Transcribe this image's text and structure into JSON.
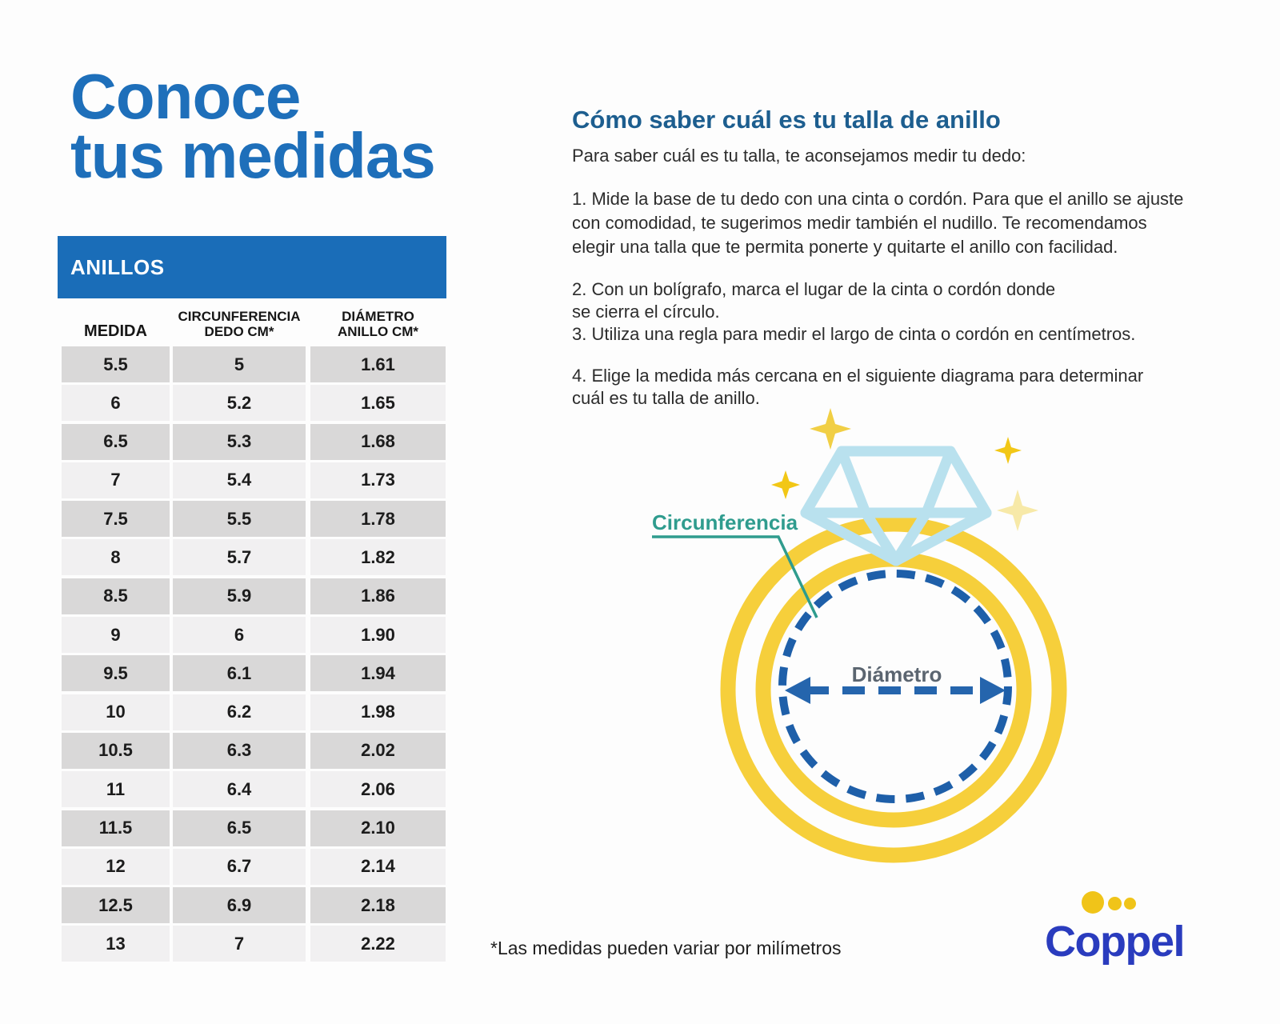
{
  "page": {
    "title": "Conoce\ntus medidas",
    "footnote": "*Las medidas pueden variar por milímetros"
  },
  "table": {
    "header": "ANILLOS",
    "columns": [
      "MEDIDA",
      "CIRCUNFERENCIA\nDEDO CM*",
      "DIÁMETRO\nANILLO CM*"
    ],
    "rows": [
      [
        "5.5",
        "5",
        "1.61"
      ],
      [
        "6",
        "5.2",
        "1.65"
      ],
      [
        "6.5",
        "5.3",
        "1.68"
      ],
      [
        "7",
        "5.4",
        "1.73"
      ],
      [
        "7.5",
        "5.5",
        "1.78"
      ],
      [
        "8",
        "5.7",
        "1.82"
      ],
      [
        "8.5",
        "5.9",
        "1.86"
      ],
      [
        "9",
        "6",
        "1.90"
      ],
      [
        "9.5",
        "6.1",
        "1.94"
      ],
      [
        "10",
        "6.2",
        "1.98"
      ],
      [
        "10.5",
        "6.3",
        "2.02"
      ],
      [
        "11",
        "6.4",
        "2.06"
      ],
      [
        "11.5",
        "6.5",
        "2.10"
      ],
      [
        "12",
        "6.7",
        "2.14"
      ],
      [
        "12.5",
        "6.9",
        "2.18"
      ],
      [
        "13",
        "7",
        "2.22"
      ]
    ]
  },
  "instructions": {
    "heading": "Cómo saber cuál es tu talla de anillo",
    "intro": "Para saber cuál es tu talla, te aconsejamos medir tu dedo:",
    "step1": "1. Mide la base de tu dedo con una cinta o cordón. Para que el anillo se ajuste\ncon comodidad, te sugerimos medir también el nudillo. Te recomendamos\nelegir una talla que te permita ponerte y quitarte el anillo con facilidad.",
    "steps2_3": "2. Con un bolígrafo, marca el lugar de la cinta o cordón donde\nse cierra el círculo.\n3. Utiliza una regla para medir el largo de cinta o cordón en centímetros.",
    "step4": "4. Elige la medida más cercana en el siguiente diagrama para determinar\ncuál es tu talla de anillo."
  },
  "diagram": {
    "label_circumference": "Circunferencia",
    "label_diameter": "Diámetro"
  },
  "logo": {
    "text": "Coppel"
  },
  "colors": {
    "title_blue": "#1e6fba",
    "heading_blue": "#1d5e8f",
    "table_bar_blue": "#1a6db8",
    "row_dark": "#d9d8d8",
    "row_light": "#f1f0f1",
    "ring_yellow": "#f6cf3b",
    "dash_navy": "#1e5fa9",
    "teal_label": "#2f9c8e",
    "diameter_gray": "#5b6570",
    "diamond_blue": "#b9e1ee",
    "logo_blue": "#2a3cbe",
    "logo_dot_yellow": "#f0c419"
  }
}
